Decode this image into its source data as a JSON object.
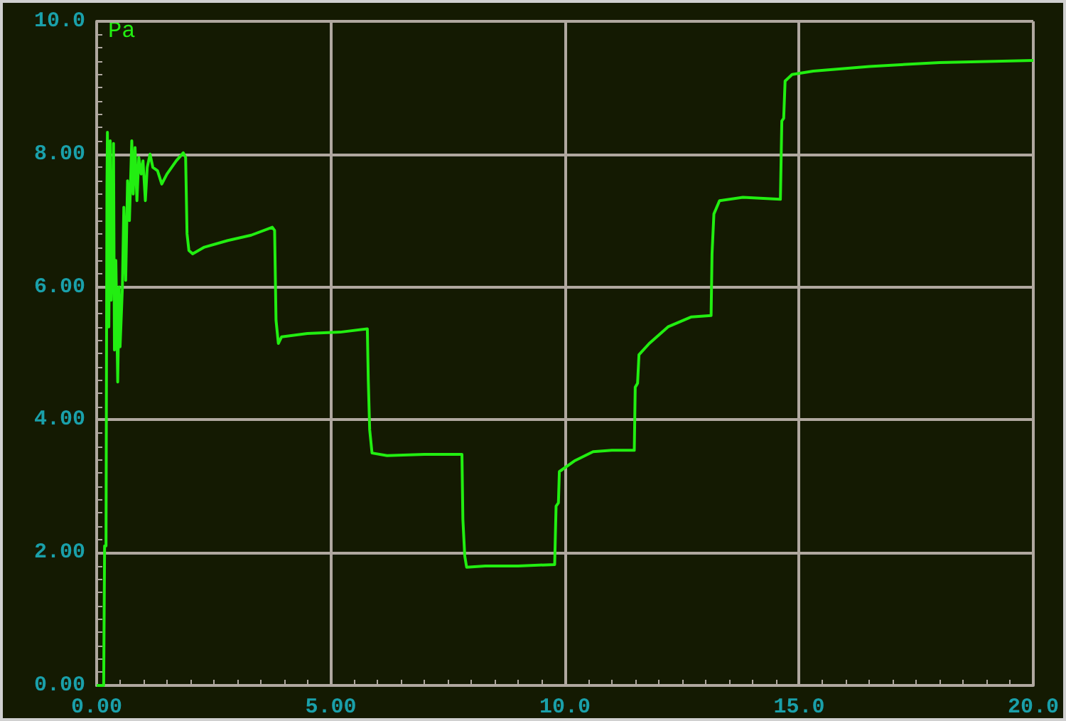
{
  "chart_data": {
    "type": "line",
    "ylabel": "Pa",
    "x": [
      0,
      0.15,
      0.17,
      0.2,
      0.22,
      0.23,
      0.26,
      0.29,
      0.31,
      0.34,
      0.36,
      0.38,
      0.41,
      0.45,
      0.48,
      0.5,
      0.55,
      0.58,
      0.62,
      0.66,
      0.7,
      0.75,
      0.78,
      0.82,
      0.86,
      0.9,
      0.95,
      0.99,
      1.04,
      1.08,
      1.14,
      1.2,
      1.3,
      1.39,
      1.5,
      1.7,
      1.85,
      1.9,
      1.93,
      1.97,
      2.05,
      2.3,
      2.8,
      3.3,
      3.75,
      3.8,
      3.83,
      3.88,
      3.95,
      4.5,
      5.2,
      5.78,
      5.8,
      5.83,
      5.88,
      6.2,
      7.0,
      7.8,
      7.82,
      7.86,
      7.9,
      8.3,
      9.0,
      9.78,
      9.81,
      9.86,
      9.88,
      10.2,
      10.6,
      11.0,
      11.48,
      11.5,
      11.55,
      11.58,
      11.8,
      12.2,
      12.7,
      13.12,
      13.14,
      13.18,
      13.3,
      13.8,
      14.6,
      14.63,
      14.67,
      14.7,
      14.85,
      15.3,
      16.5,
      18.0,
      20.0
    ],
    "series": [
      {
        "color": "#22ee11",
        "values": [
          0,
          0,
          2.1,
          2.1,
          7.5,
          8.33,
          5.4,
          8.2,
          5.8,
          6.6,
          8.16,
          5.05,
          6.4,
          4.57,
          6.0,
          5.1,
          6.0,
          7.2,
          6.1,
          7.6,
          7.0,
          8.2,
          7.4,
          8.1,
          7.3,
          7.95,
          7.7,
          7.9,
          7.3,
          7.8,
          8.0,
          7.8,
          7.75,
          7.55,
          7.7,
          7.9,
          8.02,
          7.95,
          6.8,
          6.55,
          6.5,
          6.6,
          6.7,
          6.78,
          6.9,
          6.85,
          5.5,
          5.15,
          5.25,
          5.3,
          5.32,
          5.37,
          4.6,
          3.85,
          3.5,
          3.46,
          3.48,
          3.48,
          2.5,
          1.95,
          1.78,
          1.8,
          1.8,
          1.82,
          2.7,
          2.75,
          3.22,
          3.38,
          3.52,
          3.54,
          3.54,
          4.49,
          4.55,
          4.98,
          5.15,
          5.4,
          5.55,
          5.57,
          6.5,
          7.1,
          7.3,
          7.35,
          7.32,
          8.5,
          8.54,
          9.1,
          9.2,
          9.25,
          9.32,
          9.38,
          9.41
        ]
      }
    ],
    "xlim": [
      0,
      20
    ],
    "ylim": [
      0,
      10
    ],
    "xticks": [
      {
        "value": 0,
        "label": "0.00"
      },
      {
        "value": 5,
        "label": "5.00"
      },
      {
        "value": 10,
        "label": "10.0"
      },
      {
        "value": 15,
        "label": "15.0"
      },
      {
        "value": 20,
        "label": "20.0"
      }
    ],
    "yticks": [
      {
        "value": 0,
        "label": "0.00"
      },
      {
        "value": 2,
        "label": "2.00"
      },
      {
        "value": 4,
        "label": "4.00"
      },
      {
        "value": 6,
        "label": "6.00"
      },
      {
        "value": 8,
        "label": "8.00"
      },
      {
        "value": 10,
        "label": "10.0"
      }
    ],
    "grid": true,
    "marker": "none",
    "line_style": "solid"
  }
}
